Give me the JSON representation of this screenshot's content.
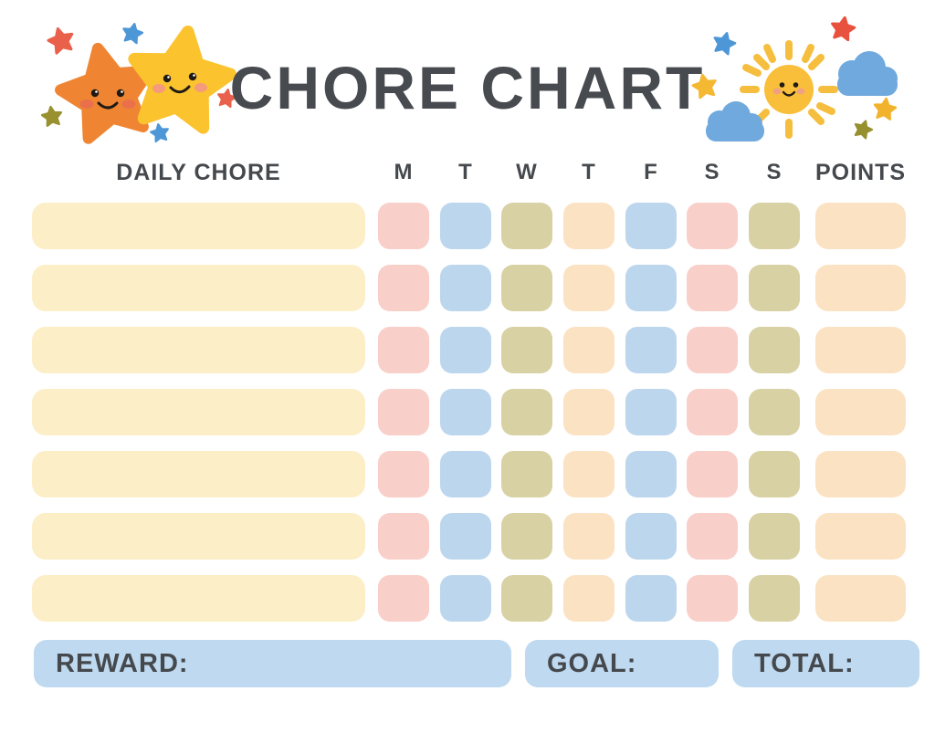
{
  "title": "CHORE CHART",
  "table": {
    "chore_header": "DAILY CHORE",
    "points_header": "POINTS",
    "day_headers": [
      "M",
      "T",
      "W",
      "T",
      "F",
      "S",
      "S"
    ],
    "day_colors": [
      "pink",
      "blue",
      "olive",
      "peach",
      "blue",
      "pink",
      "olive"
    ],
    "points_color": "peach",
    "row_count": 7,
    "rows": [
      {
        "chore": "",
        "days": [
          "",
          "",
          "",
          "",
          "",
          "",
          ""
        ],
        "points": ""
      },
      {
        "chore": "",
        "days": [
          "",
          "",
          "",
          "",
          "",
          "",
          ""
        ],
        "points": ""
      },
      {
        "chore": "",
        "days": [
          "",
          "",
          "",
          "",
          "",
          "",
          ""
        ],
        "points": ""
      },
      {
        "chore": "",
        "days": [
          "",
          "",
          "",
          "",
          "",
          "",
          ""
        ],
        "points": ""
      },
      {
        "chore": "",
        "days": [
          "",
          "",
          "",
          "",
          "",
          "",
          ""
        ],
        "points": ""
      },
      {
        "chore": "",
        "days": [
          "",
          "",
          "",
          "",
          "",
          "",
          ""
        ],
        "points": ""
      },
      {
        "chore": "",
        "days": [
          "",
          "",
          "",
          "",
          "",
          "",
          ""
        ],
        "points": ""
      }
    ]
  },
  "footer": {
    "reward_label": "REWARD:",
    "goal_label": "GOAL:",
    "total_label": "TOTAL:",
    "reward_value": "",
    "goal_value": "",
    "total_value": ""
  },
  "colors": {
    "cream": "#FCEEC6",
    "pink": "#F9CFC9",
    "blue": "#BCD6ED",
    "olive": "#D8D1A4",
    "peach": "#FBE2C3",
    "footer_bar": "#BED9F0",
    "text": "#45494D",
    "star_orange": "#EF8532",
    "star_yellow": "#FBC32E",
    "sparkle_red": "#E9604B",
    "sparkle_blue": "#4E97D7",
    "sparkle_olive": "#999130",
    "sparkle_yellow": "#F5B832",
    "sun": "#F9BF3A",
    "cloud": "#6FA9DD"
  },
  "decorations": {
    "left": [
      "orange-star-icon",
      "yellow-star-icon",
      "sparkle-stars"
    ],
    "right": [
      "sun-icon",
      "cloud-icon",
      "cloud-icon",
      "sparkle-stars"
    ]
  }
}
